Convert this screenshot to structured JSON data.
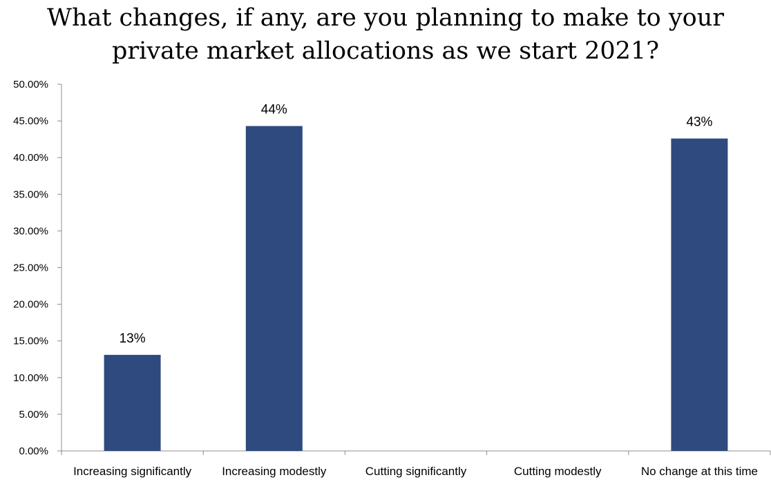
{
  "chart_data": {
    "type": "bar",
    "title_lines": [
      "What changes, if any, are you planning to make to your",
      "private market allocations as we start 2021?"
    ],
    "categories": [
      "Increasing significantly",
      "Increasing modestly",
      "Cutting significantly",
      "Cutting modestly",
      "No change at this time"
    ],
    "values": [
      0.131,
      0.443,
      0,
      0,
      0.426
    ],
    "data_labels": [
      "13%",
      "44%",
      "",
      "",
      "43%"
    ],
    "ylim": [
      0,
      0.5
    ],
    "yticks": [
      0,
      0.05,
      0.1,
      0.15,
      0.2,
      0.25,
      0.3,
      0.35,
      0.4,
      0.45,
      0.5
    ],
    "ytick_labels": [
      "0.00%",
      "5.00%",
      "10.00%",
      "15.00%",
      "20.00%",
      "25.00%",
      "30.00%",
      "35.00%",
      "40.00%",
      "45.00%",
      "50.00%"
    ],
    "grid": false,
    "legend": "none",
    "bar_color": "#2e4a7e"
  }
}
